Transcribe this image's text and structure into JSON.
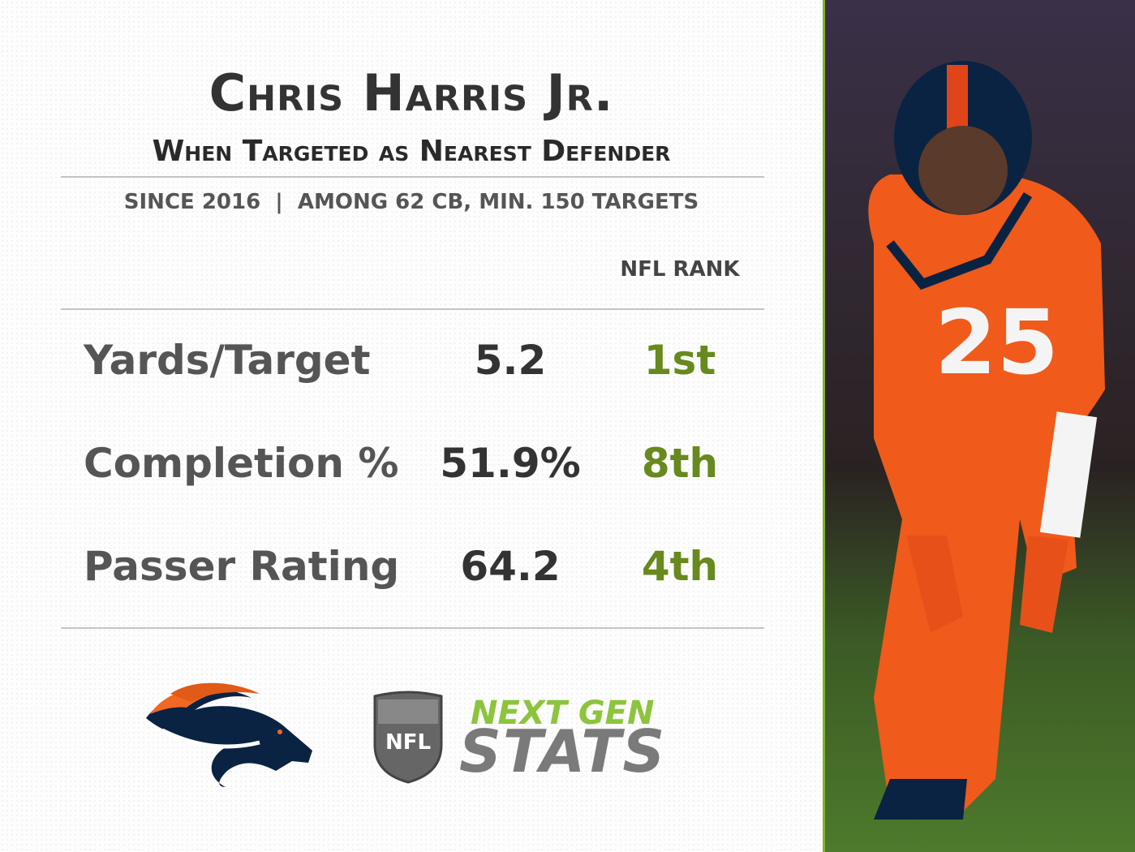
{
  "header": {
    "title": "Chris Harris Jr.",
    "subtitle": "When Targeted as Nearest Defender",
    "info": "SINCE 2016  |  AMONG 62 CB, MIN. 150 TARGETS"
  },
  "table": {
    "rank_header": "NFL RANK",
    "rows": [
      [
        "Yards/Target",
        "5.2",
        "1st"
      ],
      [
        "Completion %",
        "51.9%",
        "8th"
      ],
      [
        "Passer Rating",
        "64.2",
        "4th"
      ]
    ]
  },
  "logos": {
    "nfl": "NFL",
    "next_gen": "NEXT GEN",
    "stats": "STATS"
  }
}
